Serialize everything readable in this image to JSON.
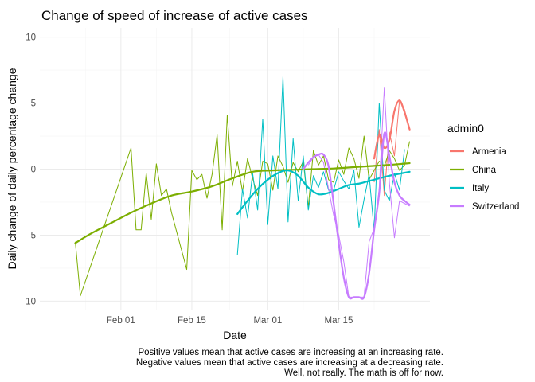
{
  "chart_data": {
    "type": "line",
    "title": "Change of speed of increase of active cases",
    "xlabel": "Date",
    "ylabel": "Daily change of daily percentage change",
    "ylim": [
      -10.7,
      10.7
    ],
    "xlim": [
      "2020-01-16",
      "2020-04-02"
    ],
    "x_ticks": [
      {
        "date": "2020-02-01",
        "label": "Feb 01"
      },
      {
        "date": "2020-02-15",
        "label": "Feb 15"
      },
      {
        "date": "2020-03-01",
        "label": "Mar 01"
      },
      {
        "date": "2020-03-15",
        "label": "Mar 15"
      }
    ],
    "y_ticks": [
      -10,
      -5,
      0,
      5,
      10
    ],
    "grid": true,
    "legend": {
      "title": "admin0",
      "position": "right"
    },
    "caption": [
      "Positive values mean that active cases are increasing at an increasing rate.",
      "Negative values mean that active cases are increasing at a decreasing rate.",
      "Well, not really. The math is off for now."
    ],
    "series": [
      {
        "name": "Armenia",
        "color": "#F8766D",
        "raw": [
          [
            "2020-03-22",
            -1.0
          ],
          [
            "2020-03-23",
            3.0
          ],
          [
            "2020-03-24",
            -2.0
          ],
          [
            "2020-03-25",
            2.8
          ],
          [
            "2020-03-26",
            1.0
          ],
          [
            "2020-03-27",
            5.2
          ],
          [
            "2020-03-28",
            4.5
          ],
          [
            "2020-03-29",
            3.0
          ]
        ],
        "smooth": [
          [
            "2020-03-22",
            0.8
          ],
          [
            "2020-03-23",
            2.6
          ],
          [
            "2020-03-24",
            1.6
          ],
          [
            "2020-03-25",
            2.2
          ],
          [
            "2020-03-26",
            4.4
          ],
          [
            "2020-03-27",
            5.2
          ],
          [
            "2020-03-28",
            4.3
          ],
          [
            "2020-03-29",
            3.0
          ]
        ]
      },
      {
        "name": "China",
        "color": "#7CAE00",
        "raw": [
          [
            "2020-01-23",
            -5.5
          ],
          [
            "2020-01-24",
            -9.6
          ],
          [
            "2020-02-03",
            1.6
          ],
          [
            "2020-02-04",
            -4.6
          ],
          [
            "2020-02-05",
            -4.6
          ],
          [
            "2020-02-06",
            -0.3
          ],
          [
            "2020-02-07",
            -3.8
          ],
          [
            "2020-02-08",
            0.4
          ],
          [
            "2020-02-09",
            -2.0
          ],
          [
            "2020-02-10",
            -1.5
          ],
          [
            "2020-02-11",
            -3.3
          ],
          [
            "2020-02-14",
            -7.6
          ],
          [
            "2020-02-15",
            -0.1
          ],
          [
            "2020-02-16",
            -0.8
          ],
          [
            "2020-02-17",
            -0.4
          ],
          [
            "2020-02-18",
            -2.2
          ],
          [
            "2020-02-19",
            -0.4
          ],
          [
            "2020-02-20",
            2.6
          ],
          [
            "2020-02-21",
            -4.6
          ],
          [
            "2020-02-22",
            4.1
          ],
          [
            "2020-02-23",
            -1.3
          ],
          [
            "2020-02-24",
            0.6
          ],
          [
            "2020-02-25",
            -1.7
          ],
          [
            "2020-02-26",
            0.8
          ],
          [
            "2020-02-27",
            -0.7
          ],
          [
            "2020-02-28",
            -2.0
          ],
          [
            "2020-02-29",
            0.6
          ],
          [
            "2020-03-01",
            0.4
          ],
          [
            "2020-03-02",
            -1.6
          ],
          [
            "2020-03-03",
            1.0
          ],
          [
            "2020-03-04",
            0.2
          ],
          [
            "2020-03-05",
            -1.0
          ],
          [
            "2020-03-06",
            0.5
          ],
          [
            "2020-03-07",
            -0.2
          ],
          [
            "2020-03-08",
            0.6
          ],
          [
            "2020-03-09",
            -2.9
          ],
          [
            "2020-03-10",
            1.4
          ],
          [
            "2020-03-11",
            0.3
          ],
          [
            "2020-03-12",
            1.0
          ],
          [
            "2020-03-13",
            -0.8
          ],
          [
            "2020-03-14",
            -1.0
          ],
          [
            "2020-03-15",
            0.7
          ],
          [
            "2020-03-16",
            -0.4
          ],
          [
            "2020-03-17",
            1.6
          ],
          [
            "2020-03-18",
            0.8
          ],
          [
            "2020-03-19",
            -0.7
          ],
          [
            "2020-03-20",
            2.5
          ],
          [
            "2020-03-21",
            -0.8
          ],
          [
            "2020-03-22",
            -0.1
          ],
          [
            "2020-03-23",
            0.6
          ],
          [
            "2020-03-24",
            0.2
          ],
          [
            "2020-03-25",
            1.4
          ],
          [
            "2020-03-26",
            0.8
          ],
          [
            "2020-03-27",
            -0.1
          ],
          [
            "2020-03-28",
            0.3
          ],
          [
            "2020-03-29",
            2.1
          ]
        ],
        "smooth": [
          [
            "2020-01-23",
            -5.6
          ],
          [
            "2020-01-26",
            -4.9
          ],
          [
            "2020-01-30",
            -4.1
          ],
          [
            "2020-02-03",
            -3.3
          ],
          [
            "2020-02-07",
            -2.6
          ],
          [
            "2020-02-11",
            -2.0
          ],
          [
            "2020-02-15",
            -1.7
          ],
          [
            "2020-02-19",
            -1.3
          ],
          [
            "2020-02-23",
            -0.7
          ],
          [
            "2020-02-27",
            -0.2
          ],
          [
            "2020-03-02",
            -0.1
          ],
          [
            "2020-03-06",
            -0.05
          ],
          [
            "2020-03-10",
            0.0
          ],
          [
            "2020-03-14",
            0.05
          ],
          [
            "2020-03-18",
            0.15
          ],
          [
            "2020-03-22",
            0.25
          ],
          [
            "2020-03-26",
            0.35
          ],
          [
            "2020-03-29",
            0.45
          ]
        ]
      },
      {
        "name": "Italy",
        "color": "#00BFC4",
        "raw": [
          [
            "2020-02-24",
            -6.5
          ],
          [
            "2020-02-25",
            -1.5
          ],
          [
            "2020-02-26",
            -3.7
          ],
          [
            "2020-02-27",
            -0.3
          ],
          [
            "2020-02-28",
            -3.1
          ],
          [
            "2020-02-29",
            3.8
          ],
          [
            "2020-03-01",
            -4.2
          ],
          [
            "2020-03-02",
            1.0
          ],
          [
            "2020-03-03",
            -1.5
          ],
          [
            "2020-03-04",
            7.0
          ],
          [
            "2020-03-05",
            -4.0
          ],
          [
            "2020-03-06",
            2.3
          ],
          [
            "2020-03-07",
            -2.4
          ],
          [
            "2020-03-08",
            1.0
          ],
          [
            "2020-03-09",
            -3.1
          ],
          [
            "2020-03-10",
            -0.5
          ],
          [
            "2020-03-11",
            -1.4
          ],
          [
            "2020-03-12",
            -0.2
          ],
          [
            "2020-03-13",
            -1.6
          ],
          [
            "2020-03-14",
            -1.6
          ],
          [
            "2020-03-15",
            -0.2
          ],
          [
            "2020-03-16",
            -0.9
          ],
          [
            "2020-03-17",
            -1.5
          ],
          [
            "2020-03-18",
            -0.1
          ],
          [
            "2020-03-19",
            -4.4
          ],
          [
            "2020-03-20",
            -2.3
          ],
          [
            "2020-03-21",
            -0.4
          ],
          [
            "2020-03-22",
            -4.7
          ],
          [
            "2020-03-23",
            5.0
          ],
          [
            "2020-03-24",
            -1.6
          ],
          [
            "2020-03-25",
            -2.4
          ],
          [
            "2020-03-26",
            -0.3
          ],
          [
            "2020-03-27",
            -1.6
          ],
          [
            "2020-03-28",
            1.5
          ]
        ],
        "smooth": [
          [
            "2020-02-24",
            -3.4
          ],
          [
            "2020-02-26",
            -2.4
          ],
          [
            "2020-02-28",
            -1.5
          ],
          [
            "2020-03-01",
            -0.8
          ],
          [
            "2020-03-03",
            -0.3
          ],
          [
            "2020-03-05",
            -0.1
          ],
          [
            "2020-03-07",
            -0.5
          ],
          [
            "2020-03-09",
            -1.4
          ],
          [
            "2020-03-11",
            -1.9
          ],
          [
            "2020-03-13",
            -1.8
          ],
          [
            "2020-03-15",
            -1.5
          ],
          [
            "2020-03-17",
            -1.2
          ],
          [
            "2020-03-19",
            -1.1
          ],
          [
            "2020-03-21",
            -0.9
          ],
          [
            "2020-03-23",
            -0.7
          ],
          [
            "2020-03-25",
            -0.5
          ],
          [
            "2020-03-27",
            -0.35
          ],
          [
            "2020-03-29",
            -0.2
          ]
        ]
      },
      {
        "name": "Switzerland",
        "color": "#C77CFF",
        "raw": [
          [
            "2020-03-09",
            0.3
          ],
          [
            "2020-03-10",
            0.9
          ],
          [
            "2020-03-11",
            1.1
          ],
          [
            "2020-03-12",
            0.5
          ],
          [
            "2020-03-13",
            -1.5
          ],
          [
            "2020-03-14",
            -3.5
          ],
          [
            "2020-03-15",
            -5.0
          ],
          [
            "2020-03-16",
            -7.0
          ],
          [
            "2020-03-17",
            -9.7
          ],
          [
            "2020-03-18",
            -9.7
          ],
          [
            "2020-03-19",
            -9.7
          ],
          [
            "2020-03-20",
            -9.7
          ],
          [
            "2020-03-21",
            -5.5
          ],
          [
            "2020-03-22",
            -4.5
          ],
          [
            "2020-03-23",
            -1.5
          ],
          [
            "2020-03-24",
            6.2
          ],
          [
            "2020-03-25",
            -1.0
          ],
          [
            "2020-03-26",
            -5.2
          ],
          [
            "2020-03-27",
            -2.4
          ],
          [
            "2020-03-28",
            -2.6
          ],
          [
            "2020-03-29",
            -2.8
          ]
        ],
        "smooth": [
          [
            "2020-03-08",
            0.0
          ],
          [
            "2020-03-09",
            0.5
          ],
          [
            "2020-03-10",
            0.9
          ],
          [
            "2020-03-11",
            1.1
          ],
          [
            "2020-03-12",
            1.1
          ],
          [
            "2020-03-13",
            0.2
          ],
          [
            "2020-03-14",
            -2.6
          ],
          [
            "2020-03-15",
            -5.6
          ],
          [
            "2020-03-16",
            -8.2
          ],
          [
            "2020-03-17",
            -9.7
          ],
          [
            "2020-03-18",
            -9.7
          ],
          [
            "2020-03-19",
            -9.7
          ],
          [
            "2020-03-20",
            -9.7
          ],
          [
            "2020-03-21",
            -7.9
          ],
          [
            "2020-03-22",
            -4.6
          ],
          [
            "2020-03-23",
            -1.8
          ],
          [
            "2020-03-24",
            2.7
          ],
          [
            "2020-03-25",
            1.0
          ],
          [
            "2020-03-26",
            -1.0
          ],
          [
            "2020-03-27",
            -2.0
          ],
          [
            "2020-03-28",
            -2.4
          ],
          [
            "2020-03-29",
            -2.7
          ]
        ]
      }
    ]
  }
}
